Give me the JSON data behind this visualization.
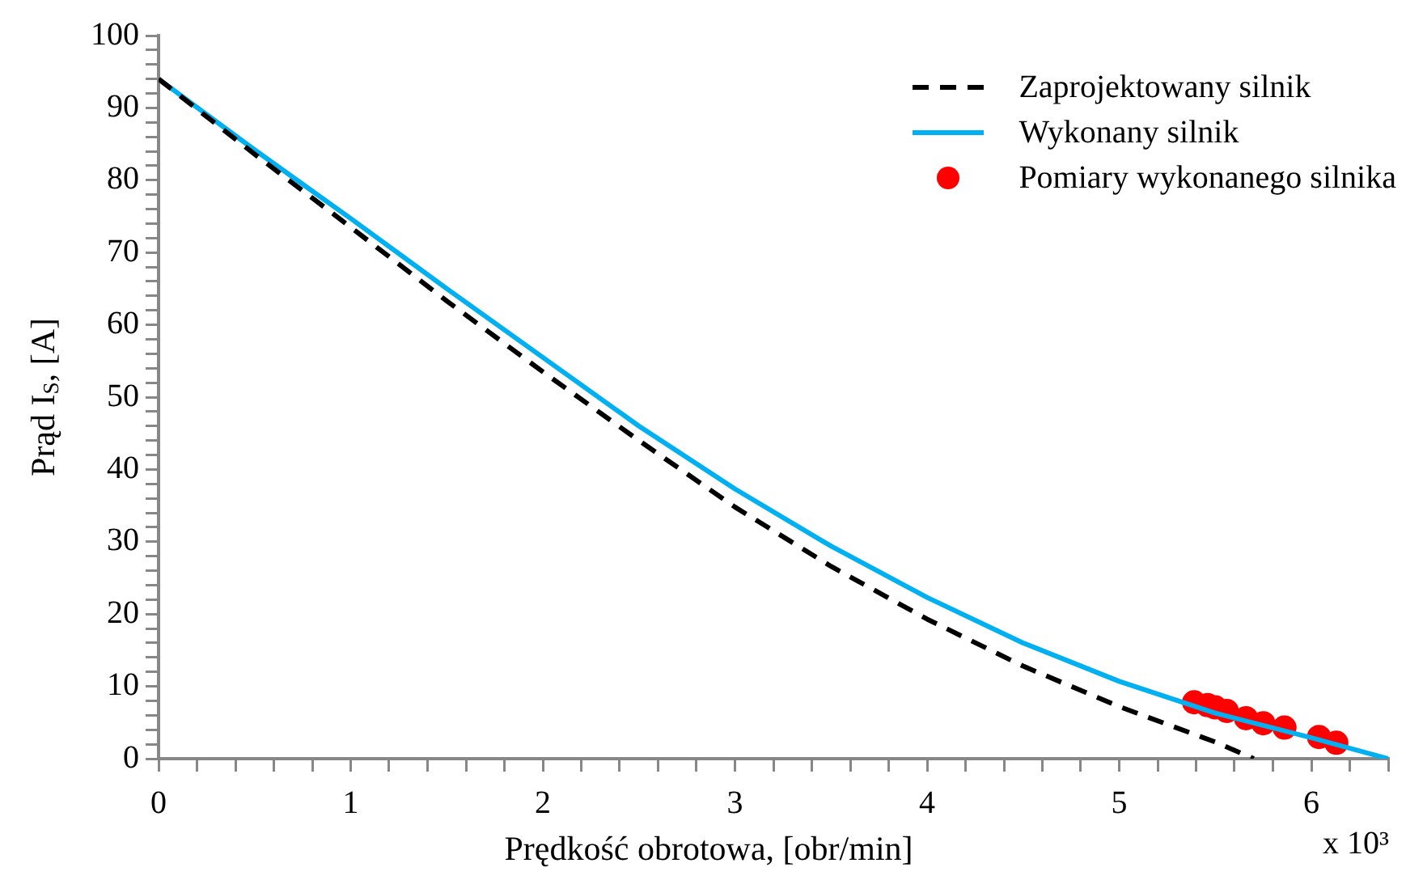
{
  "chart_data": {
    "type": "line",
    "xlabel": "Prędkość obrotowa, [obr/min]",
    "ylabel": "Prąd I$_{S}$, [A]",
    "annotations": [
      "x 10³"
    ],
    "xlim": [
      0,
      6.4
    ],
    "ylim": [
      0,
      100
    ],
    "xticks": [
      0,
      {
        "value": 0.2,
        "label": null
      },
      {
        "value": 0.4,
        "label": null
      },
      {
        "value": 0.6,
        "label": null
      },
      {
        "value": 0.8,
        "label": null
      },
      1,
      {
        "value": 1.2,
        "label": null
      },
      {
        "value": 1.4,
        "label": null
      },
      {
        "value": 1.6,
        "label": null
      },
      {
        "value": 1.8,
        "label": null
      },
      2,
      {
        "value": 2.2,
        "label": null
      },
      {
        "value": 2.4,
        "label": null
      },
      {
        "value": 2.6,
        "label": null
      },
      {
        "value": 2.8,
        "label": null
      },
      3,
      {
        "value": 3.2,
        "label": null
      },
      {
        "value": 3.4,
        "label": null
      },
      {
        "value": 3.6,
        "label": null
      },
      {
        "value": 3.8,
        "label": null
      },
      4,
      {
        "value": 4.2,
        "label": null
      },
      {
        "value": 4.4,
        "label": null
      },
      {
        "value": 4.6,
        "label": null
      },
      {
        "value": 4.8,
        "label": null
      },
      5,
      {
        "value": 5.2,
        "label": null
      },
      {
        "value": 5.4,
        "label": null
      },
      {
        "value": 5.6,
        "label": null
      },
      {
        "value": 5.8,
        "label": null
      },
      6,
      {
        "value": 6.2,
        "label": null
      },
      {
        "value": 6.4,
        "label": null
      }
    ],
    "yticks": [
      0,
      {
        "value": 2,
        "label": null
      },
      {
        "value": 4,
        "label": null
      },
      {
        "value": 6,
        "label": null
      },
      {
        "value": 8,
        "label": null
      },
      10,
      {
        "value": 12,
        "label": null
      },
      {
        "value": 14,
        "label": null
      },
      {
        "value": 16,
        "label": null
      },
      {
        "value": 18,
        "label": null
      },
      20,
      {
        "value": 22,
        "label": null
      },
      {
        "value": 24,
        "label": null
      },
      {
        "value": 26,
        "label": null
      },
      {
        "value": 28,
        "label": null
      },
      30,
      {
        "value": 32,
        "label": null
      },
      {
        "value": 34,
        "label": null
      },
      {
        "value": 36,
        "label": null
      },
      {
        "value": 38,
        "label": null
      },
      40,
      {
        "value": 42,
        "label": null
      },
      {
        "value": 44,
        "label": null
      },
      {
        "value": 46,
        "label": null
      },
      {
        "value": 48,
        "label": null
      },
      50,
      {
        "value": 52,
        "label": null
      },
      {
        "value": 54,
        "label": null
      },
      {
        "value": 56,
        "label": null
      },
      {
        "value": 58,
        "label": null
      },
      60,
      {
        "value": 62,
        "label": null
      },
      {
        "value": 64,
        "label": null
      },
      {
        "value": 66,
        "label": null
      },
      {
        "value": 68,
        "label": null
      },
      70,
      {
        "value": 72,
        "label": null
      },
      {
        "value": 74,
        "label": null
      },
      {
        "value": 76,
        "label": null
      },
      {
        "value": 78,
        "label": null
      },
      80,
      {
        "value": 82,
        "label": null
      },
      {
        "value": 84,
        "label": null
      },
      {
        "value": 86,
        "label": null
      },
      {
        "value": 88,
        "label": null
      },
      90,
      {
        "value": 92,
        "label": null
      },
      {
        "value": 94,
        "label": null
      },
      {
        "value": 96,
        "label": null
      },
      {
        "value": 98,
        "label": null
      },
      100
    ],
    "grid": false,
    "legend": "top right",
    "series": [
      {
        "name": "Zaprojektowany silnik",
        "line_style": "dashed",
        "marker": "none",
        "color": "#000000",
        "x": [
          0,
          0.5,
          1,
          1.5,
          2,
          2.5,
          3,
          3.5,
          4,
          4.5,
          5,
          5.5,
          5.7
        ],
        "values": [
          94,
          83.6,
          73.5,
          63.3,
          53.5,
          44,
          34.8,
          26.6,
          19.3,
          12.8,
          7.2,
          2.3,
          0
        ]
      },
      {
        "name": "Wykonany silnik",
        "line_style": "solid",
        "marker": "none",
        "color": "#00b0f0",
        "x": [
          0,
          0.5,
          1,
          1.5,
          2,
          2.5,
          3,
          3.5,
          4,
          4.5,
          5,
          5.5,
          6,
          6.4
        ],
        "values": [
          94,
          84.2,
          74.7,
          65,
          55.5,
          46,
          37.3,
          29.4,
          22.3,
          16,
          10.7,
          6.3,
          2.9,
          0
        ]
      },
      {
        "name": "Pomiary wykonanego silnika",
        "type": "scatter",
        "marker": "circle",
        "color": "#ff0000",
        "x": [
          5.39,
          5.46,
          5.5,
          5.56,
          5.66,
          5.75,
          5.86,
          6.04,
          6.13
        ],
        "values": [
          7.8,
          7.4,
          7.1,
          6.6,
          5.6,
          4.9,
          4.3,
          3.0,
          2.2
        ]
      }
    ]
  }
}
